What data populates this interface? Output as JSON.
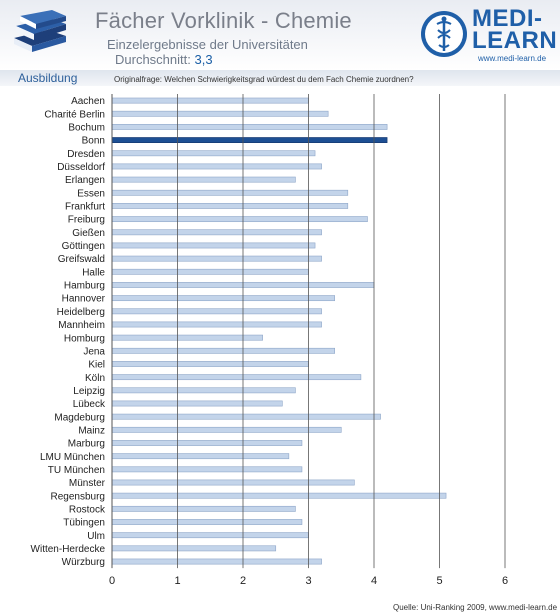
{
  "header": {
    "title": "Fächer Vorklinik - Chemie",
    "subtitle": "Einzelergebnisse der Universitäten",
    "average_label": "Durchschnitt:",
    "average_value": "3,3"
  },
  "logo": {
    "text_line1": "MEDI-",
    "text_line2": "LEARN",
    "url": "www.medi-learn.de",
    "icon": "caduceus-icon",
    "color": "#1f5fa8"
  },
  "section": {
    "label": "Ausbildung",
    "question": "Originalfrage: Welchen Schwierigkeitsgrad würdest du dem Fach Chemie zuordnen?"
  },
  "footer": {
    "source": "Quelle: Uni-Ranking 2009, www.medi-learn.de"
  },
  "chart_data": {
    "type": "bar",
    "orientation": "horizontal",
    "categories": [
      "Aachen",
      "Charité Berlin",
      "Bochum",
      "Bonn",
      "Dresden",
      "Düsseldorf",
      "Erlangen",
      "Essen",
      "Frankfurt",
      "Freiburg",
      "Gießen",
      "Göttingen",
      "Greifswald",
      "Halle",
      "Hamburg",
      "Hannover",
      "Heidelberg",
      "Mannheim",
      "Homburg",
      "Jena",
      "Kiel",
      "Köln",
      "Leipzig",
      "Lübeck",
      "Magdeburg",
      "Mainz",
      "Marburg",
      "LMU München",
      "TU München",
      "Münster",
      "Regensburg",
      "Rostock",
      "Tübingen",
      "Ulm",
      "Witten-Herdecke",
      "Würzburg"
    ],
    "values": [
      3.0,
      3.3,
      4.2,
      4.2,
      3.1,
      3.2,
      2.8,
      3.6,
      3.6,
      3.9,
      3.2,
      3.1,
      3.2,
      3.0,
      4.0,
      3.4,
      3.2,
      3.2,
      2.3,
      3.4,
      3.0,
      3.8,
      2.8,
      2.6,
      4.1,
      3.5,
      2.9,
      2.7,
      2.9,
      3.7,
      5.1,
      2.8,
      2.9,
      3.0,
      2.5,
      3.2
    ],
    "highlight": "Bonn",
    "xlim": [
      0,
      6
    ],
    "xticks": [
      "0",
      "1",
      "2",
      "3",
      "4",
      "5",
      "6"
    ],
    "grid": true,
    "bar_color": "#c3d4ea",
    "highlight_color": "#1d4f93"
  }
}
